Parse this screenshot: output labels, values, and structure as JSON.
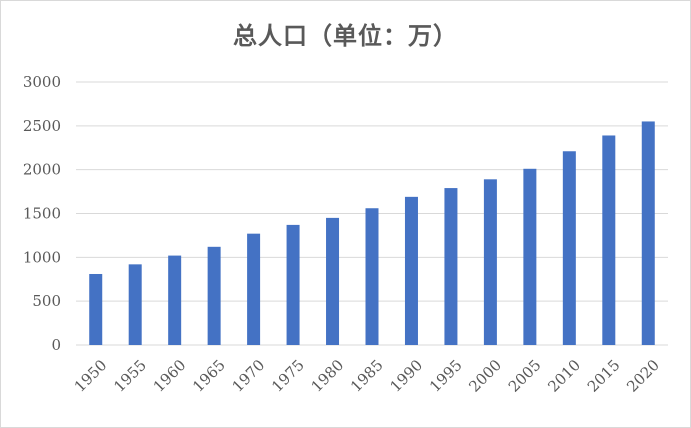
{
  "chart_data": {
    "type": "bar",
    "title": "总人口（单位：万）",
    "xlabel": "",
    "ylabel": "",
    "categories": [
      "1950",
      "1955",
      "1960",
      "1965",
      "1970",
      "1975",
      "1980",
      "1985",
      "1990",
      "1995",
      "2000",
      "2005",
      "2010",
      "2015",
      "2020"
    ],
    "values": [
      810,
      920,
      1020,
      1120,
      1270,
      1370,
      1450,
      1560,
      1690,
      1790,
      1890,
      2010,
      2210,
      2390,
      2550
    ],
    "ylim": [
      0,
      3000
    ],
    "yticks": [
      0,
      500,
      1000,
      1500,
      2000,
      2500,
      3000
    ],
    "grid": true,
    "legend": "none",
    "bar_color": "#4472c4",
    "grid_color": "#d9d9d9"
  }
}
